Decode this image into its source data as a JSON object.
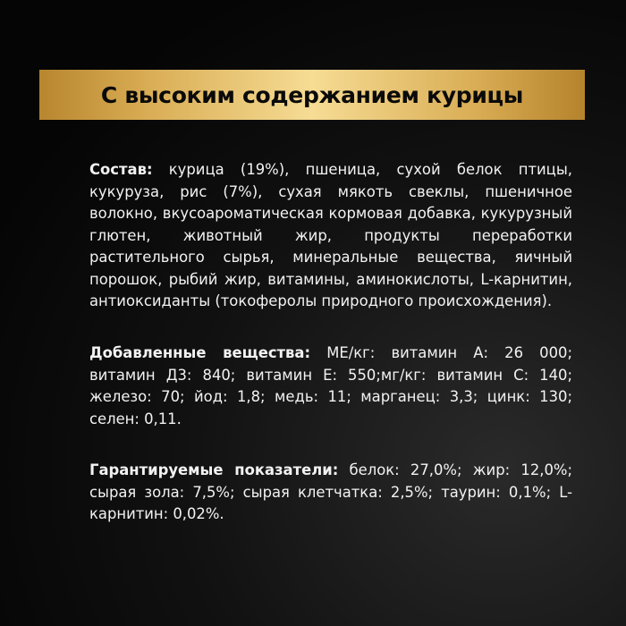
{
  "banner": {
    "title": "С высоким содержанием курицы"
  },
  "sections": [
    {
      "label": "Состав:",
      "text": " курица (19%), пшеница, сухой белок птицы, кукуруза, рис (7%), сухая мякоть свеклы, пшеничное волокно, вкусоароматическая кормовая добавка, кукурузный глютен, животный жир, продукты переработки растительного сырья, минеральные вещества, яичный порошок, рыбий жир, витамины, аминокислоты, L-карнитин, антиоксиданты (токоферолы природного происхождения)."
    },
    {
      "label": "Добавленные вещества:",
      "text": " МЕ/кг: витамин А: 26 000; витамин Д3: 840; витамин Е: 550;мг/кг: витамин С: 140; железо: 70; йод: 1,8; медь: 11; марганец: 3,3; цинк: 130; селен: 0,11."
    },
    {
      "label": "Гарантируемые показатели:",
      "text": " белок: 27,0%; жир: 12,0%; сырая зола: 7,5%; сырая клетчатка: 2,5%; таурин: 0,1%; L-карнитин: 0,02%."
    }
  ],
  "colors": {
    "background": "#0a0a0a",
    "banner_gold": "#e6c277",
    "text": "#f2f2f2"
  }
}
